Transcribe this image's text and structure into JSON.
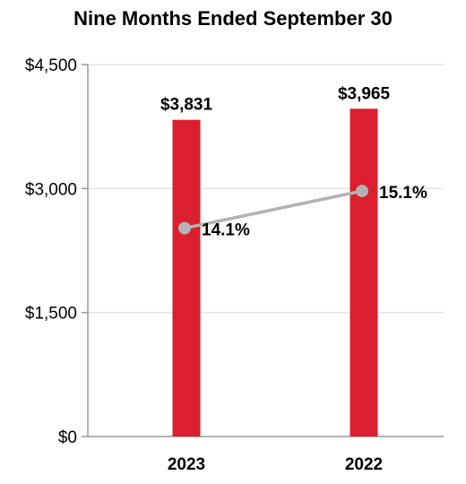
{
  "chart_data": {
    "type": "bar",
    "title": "Nine Months Ended September 30",
    "categories": [
      "2023",
      "2022"
    ],
    "series": [
      {
        "values": [
          3831,
          3965
        ],
        "labels": [
          "$3,831",
          "$3,965"
        ],
        "color": "#DA1F2E"
      },
      {
        "type": "line",
        "values": [
          14.1,
          15.1
        ],
        "labels": [
          "14.1%",
          "15.1%"
        ],
        "color": "#B3B3B3"
      }
    ],
    "y_ticks": [
      {
        "value": 0,
        "label": "$0"
      },
      {
        "value": 1500,
        "label": "$1,500"
      },
      {
        "value": 3000,
        "label": "$3,000"
      },
      {
        "value": 4500,
        "label": "$4,500"
      }
    ],
    "ylim": [
      0,
      4500
    ],
    "grid": true,
    "xlabel": "",
    "ylabel": ""
  }
}
